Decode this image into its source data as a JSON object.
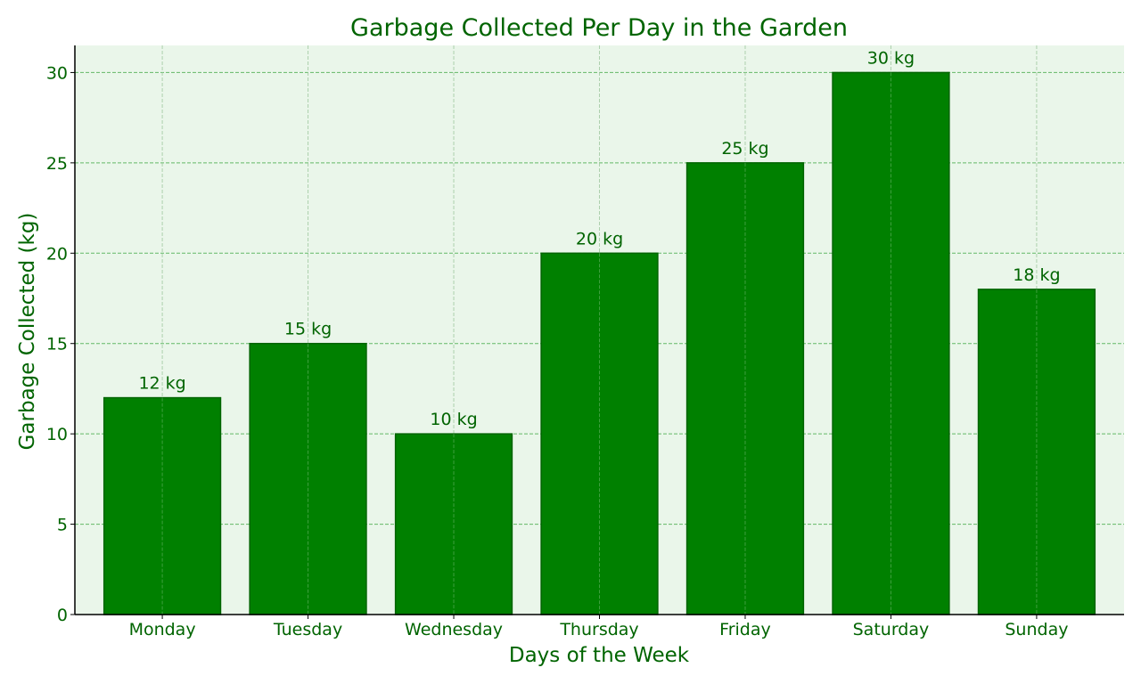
{
  "chart_data": {
    "type": "bar",
    "title": "Garbage Collected Per Day in the Garden",
    "xlabel": "Days of the Week",
    "ylabel": "Garbage Collected (kg)",
    "categories": [
      "Monday",
      "Tuesday",
      "Wednesday",
      "Thursday",
      "Friday",
      "Saturday",
      "Sunday"
    ],
    "values": [
      12,
      15,
      10,
      20,
      25,
      30,
      18
    ],
    "value_labels": [
      "12 kg",
      "15 kg",
      "10 kg",
      "20 kg",
      "25 kg",
      "30 kg",
      "18 kg"
    ],
    "ylim": [
      0,
      31.5
    ],
    "yticks": [
      "0",
      "5",
      "10",
      "15",
      "20",
      "25",
      "30"
    ],
    "grid": true,
    "colors": {
      "bar_fill": "#008000",
      "bar_edge": "#006400",
      "text": "#006400",
      "plot_background": "#eaf6ea",
      "grid": "#4caf50"
    }
  }
}
